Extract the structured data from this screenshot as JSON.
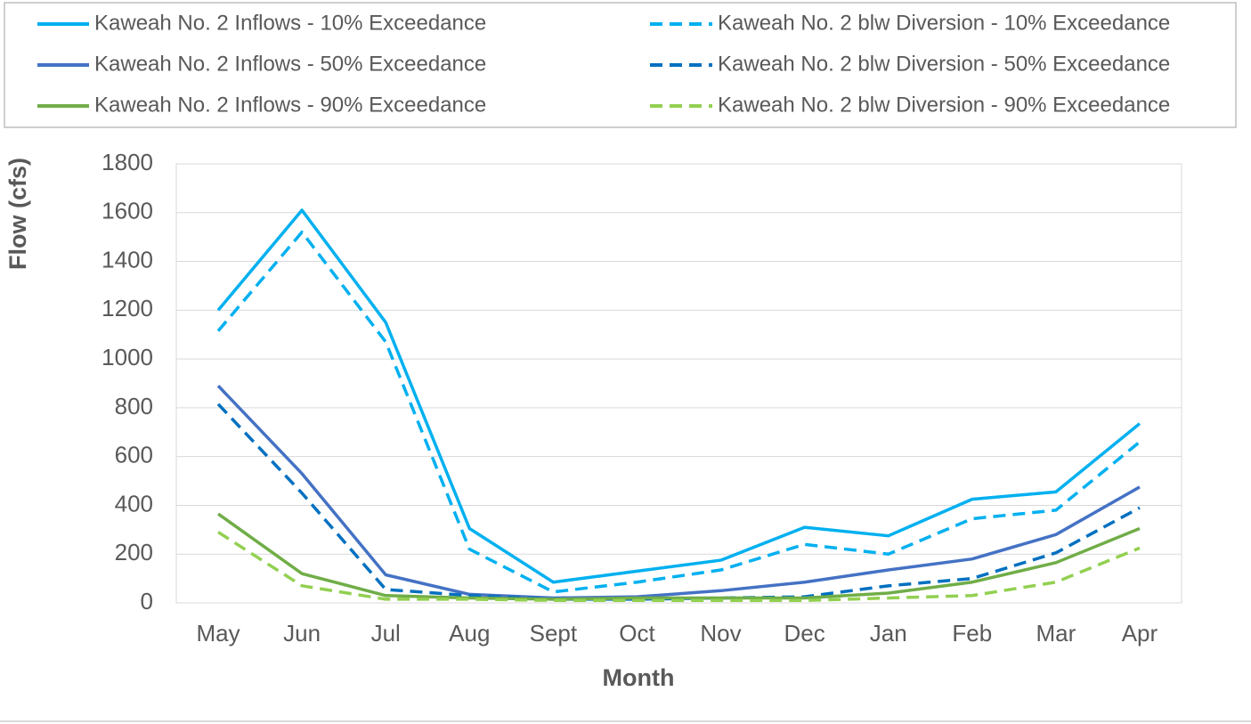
{
  "chart_data": {
    "type": "line",
    "x_label": "Month",
    "y_label": "Flow (cfs)",
    "categories": [
      "May",
      "Jun",
      "Jul",
      "Aug",
      "Sept",
      "Oct",
      "Nov",
      "Dec",
      "Jan",
      "Feb",
      "Mar",
      "Apr"
    ],
    "series": [
      {
        "name": "Kaweah No. 2 Inflows - 10% Exceedance",
        "color": "#00b0f0",
        "style": "solid",
        "values": [
          1200,
          1610,
          1150,
          305,
          85,
          130,
          175,
          310,
          275,
          425,
          455,
          735
        ]
      },
      {
        "name": "Kaweah No. 2 blw Diversion - 10% Exceedance",
        "color": "#00b0f0",
        "style": "dashed",
        "values": [
          1115,
          1520,
          1070,
          220,
          45,
          85,
          135,
          240,
          200,
          345,
          380,
          660
        ]
      },
      {
        "name": "Kaweah No. 2 Inflows - 50% Exceedance",
        "color": "#4472c4",
        "style": "solid",
        "values": [
          890,
          530,
          115,
          35,
          20,
          25,
          50,
          85,
          135,
          180,
          280,
          475
        ]
      },
      {
        "name": "Kaweah No. 2 blw Diversion - 50% Exceedance",
        "color": "#0070c0",
        "style": "dashed",
        "values": [
          815,
          450,
          55,
          30,
          15,
          15,
          20,
          25,
          70,
          100,
          205,
          390
        ]
      },
      {
        "name": "Kaweah No. 2 Inflows - 90% Exceedance",
        "color": "#70ad47",
        "style": "solid",
        "values": [
          365,
          120,
          30,
          20,
          15,
          20,
          20,
          20,
          40,
          85,
          165,
          305
        ]
      },
      {
        "name": "Kaweah No. 2 blw Diversion - 90% Exceedance",
        "color": "#92d050",
        "style": "dashed",
        "values": [
          290,
          70,
          15,
          15,
          10,
          10,
          10,
          10,
          20,
          30,
          85,
          225
        ]
      }
    ],
    "ylim": [
      0,
      1800
    ],
    "yticks": [
      0,
      200,
      400,
      600,
      800,
      1000,
      1200,
      1400,
      1600,
      1800
    ],
    "grid": true,
    "legend": "top"
  }
}
